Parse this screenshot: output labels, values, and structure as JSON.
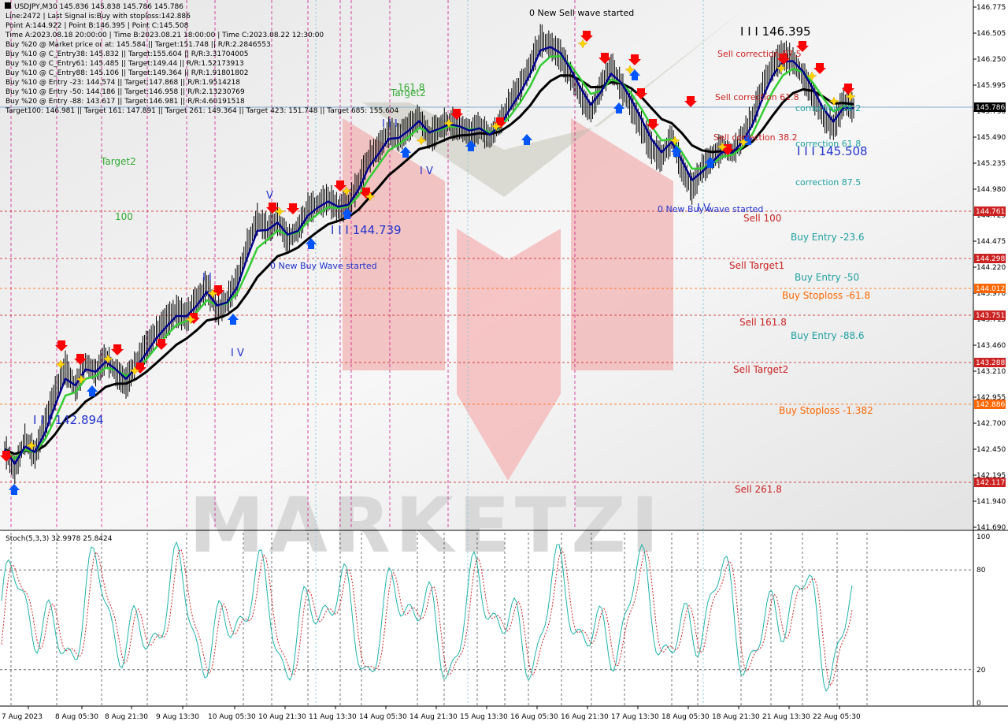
{
  "header_lines": [
    "USDJPY,M30  145.836 145.838 145.786 145.786",
    "Line:2472 | Last Signal is:Buy with stoploss:142.886",
    "Point A:144.922 | Point B:146.395 | Point C:145.508",
    "Time A:2023.08.18 20:00:00 | Time B:2023.08.21 18:00:00 | Time C:2023.08.22 12:30:00",
    "Buy %20 @ Market price or at: 145.584 || Target:151.748 || R/R:2.2846553",
    "Buy %10 @ C_Entry38: 145.832 || Target:155.604 || R/R:3.31704005",
    "Buy %10 @ C_Entry61: 145.485 || Target:149.44 || R/R:1.52173913",
    "Buy %10 @ C_Entry88: 145.106 || Target:149.364 || R/R:1.91801802",
    "Buy %10 @ Entry -23: 144.574 || Target:147.868 || R/R:1.9514218",
    "Buy %10 @ Entry -50: 144.186 || Target:146.958 || R/R:2.13230769",
    "Buy %20 @ Entry -88: 143.617 || Target:146.981 || R/R:4.60191518",
    "Target100: 146.981 || Target 161: 147.891 || Target 261: 149.364 || Target 423: 151.748 || Target 685: 155.604"
  ],
  "price_axis_ticks": [
    "146.775",
    "146.505",
    "146.250",
    "145.995",
    "145.730",
    "145.490",
    "145.235",
    "144.980",
    "144.725",
    "144.475",
    "144.220",
    "143.970",
    "143.715",
    "143.460",
    "143.210",
    "142.955",
    "142.700",
    "142.450",
    "142.195",
    "141.940",
    "141.690"
  ],
  "price_markers": [
    {
      "value": "145.786",
      "style": "dark"
    },
    {
      "value": "144.761",
      "style": "red"
    },
    {
      "value": "144.298",
      "style": "red"
    },
    {
      "value": "144.012",
      "style": "orange"
    },
    {
      "value": "143.751",
      "style": "red"
    },
    {
      "value": "143.288",
      "style": "red"
    },
    {
      "value": "142.886",
      "style": "orange"
    },
    {
      "value": "142.117",
      "style": "red"
    }
  ],
  "annotations": {
    "sell_wave": "0 New Sell wave started",
    "point_b": "I I I 146.395",
    "point_c": "I I I 145.508",
    "point_mid": "I I I 144.739",
    "point_low": "I I I 142.894",
    "buy_wave_1": "0 New Buy Wave started",
    "buy_wave_2": "0 New Buy wave started",
    "target2_a": "Target2",
    "target2_b": "Target2",
    "lvl_100": "100",
    "lvl_1618": "161.8",
    "sell_corr_875": "Sell correction 87.5",
    "sell_corr_618": "Sell correction 61.8",
    "sell_corr_382": "Sell correction 38.2",
    "corr_382": "correction 38.2",
    "corr_618": "correction 61.8",
    "corr_875": "correction 87.5",
    "sell_100": "Sell 100",
    "sell_target1": "Sell Target1",
    "sell_1618": "Sell 161.8",
    "sell_target2": "Sell Target2",
    "sell_2618": "Sell  261.8",
    "buy_entry_236": "Buy Entry -23.6",
    "buy_entry_50": "Buy Entry -50",
    "buy_entry_886": "Buy Entry -88.6",
    "buy_sl_618": "Buy Stoploss -61.8",
    "buy_sl_1382": "Buy Stoploss -1.382",
    "wave_v": "V",
    "wave_ii": "I I",
    "wave_iv": "I V",
    "wave_iii": "I I I",
    "wave_iv_b": "I V",
    "wave_iv_c": "I V"
  },
  "stoch": {
    "title": "Stoch(5,3,3) 32.9978 25.8424",
    "ticks": [
      "100",
      "80",
      "20",
      "0"
    ]
  },
  "time_ticks": [
    "7 Aug 2023",
    "8 Aug 05:30",
    "8 Aug 21:30",
    "9 Aug 13:30",
    "10 Aug 05:30",
    "10 Aug 21:30",
    "11 Aug 13:30",
    "14 Aug 05:30",
    "14 Aug 21:30",
    "15 Aug 13:30",
    "16 Aug 05:30",
    "16 Aug 21:30",
    "17 Aug 13:30",
    "18 Aug 05:30",
    "18 Aug 21:30",
    "21 Aug 13:30",
    "22 Aug 05:30"
  ],
  "watermark": "MARKETZI",
  "colors": {
    "ma_fast": "#00008b",
    "ma_mid": "#33cc33",
    "ma_slow": "#000000",
    "sell_arrow": "#ff0000",
    "buy_arrow": "#0055ff",
    "stoch_main": "#20b2aa",
    "stoch_signal": "#cc2222",
    "red_marker": "#cc2222",
    "orange_marker": "#ff6600"
  },
  "chart_data": {
    "type": "candlestick",
    "symbol": "USDJPY",
    "timeframe": "M30",
    "ylim": [
      141.69,
      146.775
    ],
    "levels": [
      {
        "name": "Sell 100",
        "value": 144.761
      },
      {
        "name": "Sell Target1",
        "value": 144.298
      },
      {
        "name": "Buy Stoploss -61.8",
        "value": 144.012
      },
      {
        "name": "Sell 161.8",
        "value": 143.751
      },
      {
        "name": "Sell Target2",
        "value": 143.288
      },
      {
        "name": "Buy Stoploss -1.382",
        "value": 142.886
      },
      {
        "name": "Sell 261.8",
        "value": 142.117
      },
      {
        "name": "Last",
        "value": 145.786
      }
    ],
    "price_path": [
      [
        "7 Aug 2023",
        142.45
      ],
      [
        "",
        142.25
      ],
      [
        "",
        142.55
      ],
      [
        "",
        142.4
      ],
      [
        "",
        142.7
      ],
      [
        "8 Aug 05:30",
        143.0
      ],
      [
        "",
        143.25
      ],
      [
        "",
        143.05
      ],
      [
        "",
        143.3
      ],
      [
        "",
        143.2
      ],
      [
        "8 Aug 21:30",
        143.35
      ],
      [
        "",
        143.2
      ],
      [
        "",
        143.1
      ],
      [
        "",
        143.3
      ],
      [
        "",
        143.45
      ],
      [
        "9 Aug 13:30",
        143.6
      ],
      [
        "",
        143.7
      ],
      [
        "",
        143.8
      ],
      [
        "",
        143.75
      ],
      [
        "",
        143.9
      ],
      [
        "10 Aug 05:30",
        144.05
      ],
      [
        "",
        143.8
      ],
      [
        "",
        143.9
      ],
      [
        "",
        144.1
      ],
      [
        "",
        144.45
      ],
      [
        "10 Aug 21:30",
        144.7
      ],
      [
        "",
        144.6
      ],
      [
        "",
        144.7
      ],
      [
        "",
        144.5
      ],
      [
        "",
        144.6
      ],
      [
        "11 Aug 13:30",
        144.8
      ],
      [
        "",
        144.85
      ],
      [
        "",
        144.9
      ],
      [
        "",
        144.8
      ],
      [
        "",
        144.85
      ],
      [
        "14 Aug 05:30",
        145.05
      ],
      [
        "",
        145.3
      ],
      [
        "",
        145.4
      ],
      [
        "",
        145.55
      ],
      [
        "",
        145.5
      ],
      [
        "14 Aug 21:30",
        145.6
      ],
      [
        "",
        145.7
      ],
      [
        "",
        145.5
      ],
      [
        "",
        145.6
      ],
      [
        "",
        145.65
      ],
      [
        "15 Aug 13:30",
        145.6
      ],
      [
        "",
        145.55
      ],
      [
        "",
        145.6
      ],
      [
        "",
        145.5
      ],
      [
        "",
        145.65
      ],
      [
        "16 Aug 05:30",
        145.85
      ],
      [
        "",
        146.0
      ],
      [
        "",
        146.2
      ],
      [
        "",
        146.45
      ],
      [
        "",
        146.4
      ],
      [
        "16 Aug 21:30",
        146.3
      ],
      [
        "",
        146.1
      ],
      [
        "",
        145.9
      ],
      [
        "",
        145.75
      ],
      [
        "",
        146.0
      ],
      [
        "17 Aug 13:30",
        146.2
      ],
      [
        "",
        146.0
      ],
      [
        "",
        145.8
      ],
      [
        "",
        145.6
      ],
      [
        "",
        145.4
      ],
      [
        "18 Aug 05:30",
        145.3
      ],
      [
        "",
        145.5
      ],
      [
        "",
        145.2
      ],
      [
        "",
        145.0
      ],
      [
        "",
        145.2
      ],
      [
        "18 Aug 21:30",
        145.3
      ],
      [
        "",
        145.4
      ],
      [
        "",
        145.35
      ],
      [
        "",
        145.5
      ],
      [
        "",
        145.7
      ],
      [
        "21 Aug 13:30",
        146.0
      ],
      [
        "",
        146.2
      ],
      [
        "",
        146.3
      ],
      [
        "",
        146.25
      ],
      [
        "",
        146.1
      ],
      [
        "22 Aug 05:30",
        145.9
      ],
      [
        "",
        145.7
      ],
      [
        "",
        145.6
      ],
      [
        "",
        145.85
      ],
      [
        "",
        145.786
      ]
    ]
  }
}
